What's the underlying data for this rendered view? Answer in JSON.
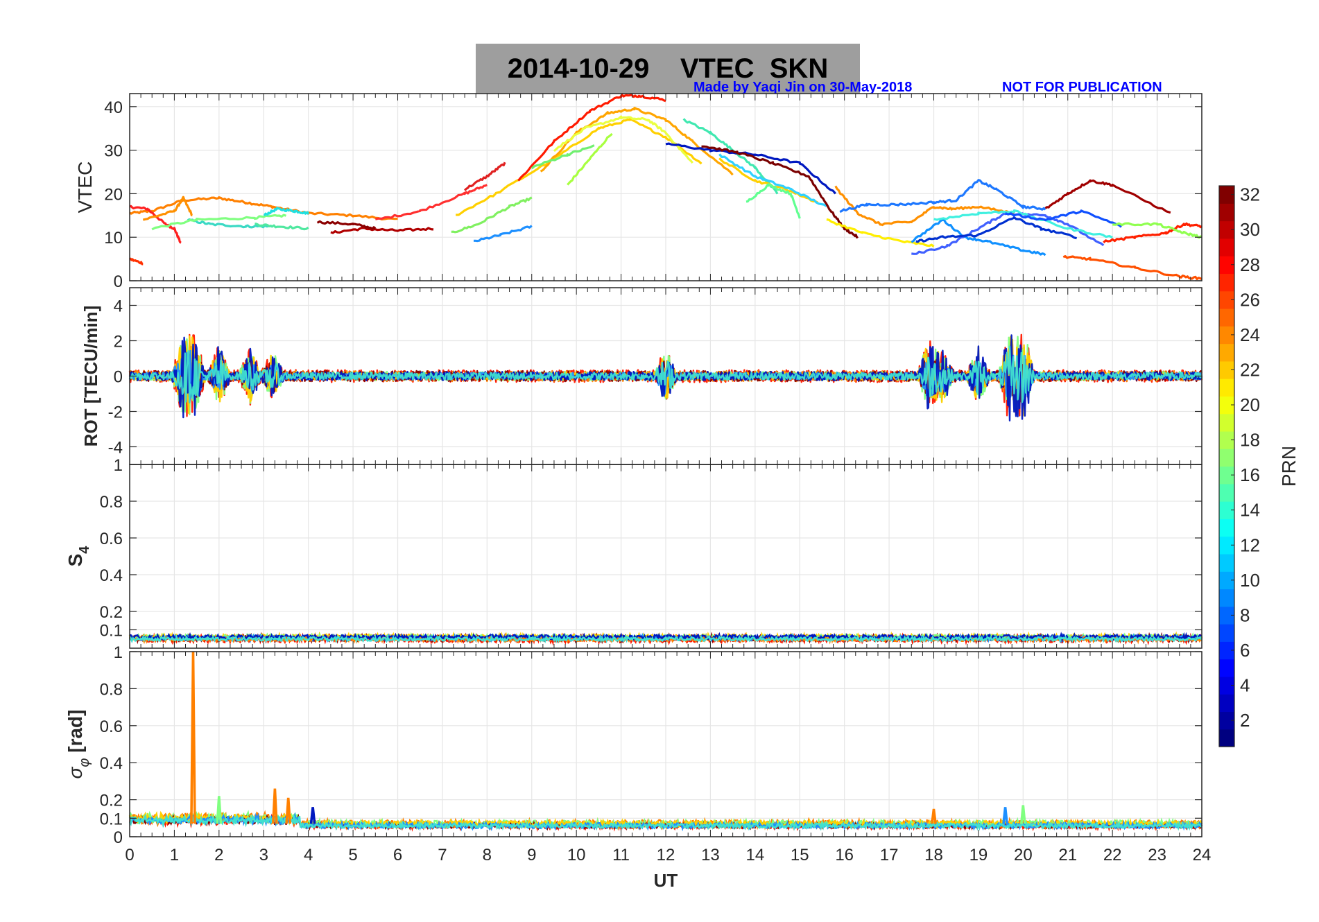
{
  "header": {
    "title": "2014-10-29    VTEC  SKN",
    "credit": "Made by Yaqi Jin on 30-May-2018",
    "notice": "NOT FOR PUBLICATION"
  },
  "colors": {
    "title_box": "#9e9e9e",
    "credit_text": "#0000ff",
    "grid": "#e6e6e6",
    "axis": "#262626"
  },
  "chart_data": [
    {
      "type": "line",
      "panel": "vtec",
      "ylabel": "VTEC",
      "xlim": [
        0,
        24
      ],
      "ylim": [
        0,
        43
      ],
      "yticks": [
        "0",
        "10",
        "20",
        "30",
        "40"
      ],
      "series": [
        {
          "color": "#ff8000",
          "x": [
            0,
            0.5,
            1.2,
            2,
            2.6,
            3.2,
            4,
            5,
            6
          ],
          "y": [
            15.5,
            16,
            18.5,
            19,
            18,
            17,
            15.5,
            15,
            14
          ]
        },
        {
          "color": "#ff2020",
          "x": [
            0,
            0.4,
            0.8,
            1.0,
            1.15
          ],
          "y": [
            17,
            16.5,
            13,
            12,
            8.5
          ]
        },
        {
          "color": "#ff3000",
          "x": [
            0,
            0.3
          ],
          "y": [
            5,
            4
          ]
        },
        {
          "color": "#ff9000",
          "x": [
            0.3,
            1.0,
            1.2,
            1.4
          ],
          "y": [
            14,
            16,
            19,
            15
          ]
        },
        {
          "color": "#3ad9c4",
          "x": [
            1.3,
            1.8,
            2.6,
            3.2
          ],
          "y": [
            14,
            13,
            12.5,
            12.5
          ]
        },
        {
          "color": "#80ff80",
          "x": [
            0.5,
            1.5,
            2.8,
            3.5
          ],
          "y": [
            12,
            14,
            14.5,
            15
          ]
        },
        {
          "color": "#20e0e0",
          "x": [
            3.0,
            3.3,
            3.7,
            4.0
          ],
          "y": [
            15,
            16.5,
            16,
            15.5
          ]
        },
        {
          "color": "#50e8a0",
          "x": [
            2.8,
            3.3,
            4.0
          ],
          "y": [
            13,
            12.5,
            12
          ]
        },
        {
          "color": "#b00000",
          "x": [
            4.5,
            5.2,
            6.0,
            6.8
          ],
          "y": [
            11,
            12,
            11.5,
            12
          ]
        },
        {
          "color": "#8b0000",
          "x": [
            4.2,
            5.0,
            5.5
          ],
          "y": [
            13.5,
            13,
            12
          ]
        },
        {
          "color": "#ff3030",
          "x": [
            5.5,
            6.5,
            7.5,
            8.0
          ],
          "y": [
            14,
            16,
            20,
            22
          ]
        },
        {
          "color": "#e02020",
          "x": [
            7.5,
            8.0,
            8.4
          ],
          "y": [
            21,
            24,
            27
          ]
        },
        {
          "color": "#80f060",
          "x": [
            7.2,
            7.8,
            8.5,
            9.0
          ],
          "y": [
            11,
            13,
            17,
            19
          ]
        },
        {
          "color": "#1e90ff",
          "x": [
            7.7,
            8.3,
            9.0
          ],
          "y": [
            9,
            10.5,
            12.5
          ]
        },
        {
          "color": "#ffd000",
          "x": [
            7.3,
            8.2,
            9.5,
            10.5,
            11.2,
            12,
            12.8
          ],
          "y": [
            15,
            20,
            28,
            35,
            37,
            33,
            27
          ]
        },
        {
          "color": "#ff1a00",
          "x": [
            8.7,
            9.5,
            10.3,
            11.0,
            11.4,
            12.0
          ],
          "y": [
            23,
            32,
            39,
            42.5,
            42.5,
            41.5
          ]
        },
        {
          "color": "#ffa500",
          "x": [
            9.2,
            10.0,
            10.7,
            11.3,
            12.0,
            12.6,
            13.5
          ],
          "y": [
            25,
            34,
            38.5,
            39.5,
            37,
            32,
            24.5
          ]
        },
        {
          "color": "#eaff40",
          "x": [
            9.5,
            10.2,
            11.0,
            11.6,
            12.0,
            12.6
          ],
          "y": [
            30,
            35,
            37.5,
            37,
            34,
            27
          ]
        },
        {
          "color": "#70f070",
          "x": [
            9.0,
            9.8,
            10.4
          ],
          "y": [
            26,
            29,
            31
          ]
        },
        {
          "color": "#a8ff40",
          "x": [
            9.8,
            10.3,
            10.8
          ],
          "y": [
            22,
            28,
            34
          ]
        },
        {
          "color": "#40e8b0",
          "x": [
            12.4,
            13.0,
            13.5,
            14.0,
            14.5
          ],
          "y": [
            37,
            34,
            30,
            26,
            20
          ]
        },
        {
          "color": "#0018c0",
          "x": [
            12.0,
            13.0,
            14.0,
            15.0,
            15.8
          ],
          "y": [
            31.5,
            30,
            29,
            27,
            20
          ]
        },
        {
          "color": "#ffd000",
          "x": [
            13.2,
            14.0,
            14.7,
            15.4
          ],
          "y": [
            28,
            23,
            21,
            18
          ]
        },
        {
          "color": "#30d0ff",
          "x": [
            13.2,
            14.0,
            14.8,
            15.6
          ],
          "y": [
            29,
            24,
            21,
            17
          ]
        },
        {
          "color": "#60ff90",
          "x": [
            13.8,
            14.3,
            14.8,
            15.0
          ],
          "y": [
            18,
            22,
            20,
            14.5
          ]
        },
        {
          "color": "#7a0000",
          "x": [
            12.8,
            13.6,
            14.4,
            15.2,
            15.7,
            16.0,
            16.3
          ],
          "y": [
            31,
            29.5,
            27,
            24,
            16,
            12,
            10
          ]
        },
        {
          "color": "#ffee00",
          "x": [
            15.6,
            16.4,
            17.3,
            18.0
          ],
          "y": [
            14,
            11,
            9,
            8
          ]
        },
        {
          "color": "#ff9000",
          "x": [
            15.8,
            16.3,
            16.8,
            17.5,
            18.0,
            18.4,
            19.0,
            19.8
          ],
          "y": [
            21.5,
            15.5,
            13,
            13.5,
            17,
            16.5,
            17,
            15.5
          ]
        },
        {
          "color": "#1e78ff",
          "x": [
            15.9,
            16.5,
            17.2,
            18.0,
            18.5,
            19.0,
            19.4,
            20.0,
            20.5
          ],
          "y": [
            16,
            17.5,
            17.5,
            18,
            18.5,
            23,
            21,
            17,
            16.5
          ]
        },
        {
          "color": "#1090ff",
          "x": [
            17.5,
            18.2,
            18.7,
            19.2,
            20.0,
            20.5
          ],
          "y": [
            9,
            14,
            10,
            9,
            7,
            6
          ]
        },
        {
          "color": "#4060ff",
          "x": [
            17.5,
            18.3,
            19.0,
            19.6,
            20.5,
            21.0,
            21.8
          ],
          "y": [
            6,
            8,
            12,
            15.5,
            15,
            13,
            8
          ]
        },
        {
          "color": "#0030d0",
          "x": [
            17.6,
            18.2,
            19.0,
            19.8,
            20.4,
            21.2
          ],
          "y": [
            9,
            10,
            10.5,
            14.5,
            12,
            10
          ]
        },
        {
          "color": "#40f0e0",
          "x": [
            18.0,
            19.0,
            19.8,
            21.0,
            22.0
          ],
          "y": [
            14,
            15.5,
            16,
            12,
            10
          ]
        },
        {
          "color": "#1050ff",
          "x": [
            19.6,
            20.5,
            21.3,
            22.2
          ],
          "y": [
            15.5,
            14,
            16,
            12.5
          ]
        },
        {
          "color": "#a00000",
          "x": [
            20.5,
            21.0,
            21.5,
            22.0,
            23.3
          ],
          "y": [
            16.5,
            20,
            23,
            22,
            15.5
          ]
        },
        {
          "color": "#ff2000",
          "x": [
            21.8,
            22.5,
            23.2,
            23.6,
            24.0
          ],
          "y": [
            9,
            10,
            11,
            13,
            12.5
          ]
        },
        {
          "color": "#ff5000",
          "x": [
            20.9,
            21.5,
            22.5,
            23.5,
            24.0
          ],
          "y": [
            5.5,
            5,
            3,
            1,
            0.5
          ]
        },
        {
          "color": "#90ff50",
          "x": [
            22.0,
            23.0,
            23.6,
            24.0
          ],
          "y": [
            13,
            13,
            11,
            10
          ]
        }
      ]
    },
    {
      "type": "line",
      "panel": "rot",
      "ylabel": "ROT [TECU/min]",
      "xlim": [
        0,
        24
      ],
      "ylim": [
        -5,
        5
      ],
      "yticks": [
        "-4",
        "-2",
        "0",
        "2",
        "4"
      ],
      "bursts": [
        {
          "x": 1.2,
          "amp": 2.1
        },
        {
          "x": 1.45,
          "amp": 2.2
        },
        {
          "x": 2.0,
          "amp": 1.6
        },
        {
          "x": 2.7,
          "amp": 1.3
        },
        {
          "x": 3.2,
          "amp": 1.2
        },
        {
          "x": 12.0,
          "amp": 1.6
        },
        {
          "x": 17.9,
          "amp": 2.0
        },
        {
          "x": 18.2,
          "amp": 1.4
        },
        {
          "x": 19.0,
          "amp": 1.5
        },
        {
          "x": 19.7,
          "amp": 2.5
        },
        {
          "x": 20.0,
          "amp": 2.6
        }
      ],
      "series": [
        {
          "color": "#ff1a00",
          "amp": 0.35
        },
        {
          "color": "#ff8000",
          "amp": 0.3
        },
        {
          "color": "#80ff80",
          "amp": 0.25
        },
        {
          "color": "#8b0000",
          "amp": 0.3
        },
        {
          "color": "#ffd000",
          "amp": 0.2
        },
        {
          "color": "#1e90ff",
          "amp": 0.2
        },
        {
          "color": "#0018c0",
          "amp": 0.25
        },
        {
          "color": "#40e0d0",
          "amp": 0.2
        }
      ]
    },
    {
      "type": "line",
      "panel": "s4",
      "ylabel": "S",
      "ylabel_sub": "4",
      "xlim": [
        0,
        24
      ],
      "ylim": [
        0,
        1
      ],
      "yticks": [
        "0.1",
        "0.2",
        "0.4",
        "0.6",
        "0.8",
        "1"
      ],
      "series": [
        {
          "color": "#ff1a00",
          "base": 0.05,
          "amp": 0.018
        },
        {
          "color": "#8b0000",
          "base": 0.055,
          "amp": 0.015
        },
        {
          "color": "#ffd000",
          "base": 0.06,
          "amp": 0.015
        },
        {
          "color": "#80ff80",
          "base": 0.06,
          "amp": 0.012
        },
        {
          "color": "#1e90ff",
          "base": 0.055,
          "amp": 0.012
        },
        {
          "color": "#ff8000",
          "base": 0.05,
          "amp": 0.012
        },
        {
          "color": "#0018c0",
          "base": 0.06,
          "amp": 0.012
        },
        {
          "color": "#40e0d0",
          "base": 0.05,
          "amp": 0.01
        }
      ]
    },
    {
      "type": "line",
      "panel": "sigma",
      "ylabel": "σ",
      "ylabel_sub": "φ",
      "ylabel_unit": "[rad]",
      "xlim": [
        0,
        24
      ],
      "ylim": [
        0,
        1
      ],
      "yticks": [
        "0",
        "0.1",
        "0.2",
        "0.4",
        "0.6",
        "0.8",
        "1"
      ],
      "xlabel": "UT",
      "xticks": [
        "0",
        "1",
        "2",
        "3",
        "4",
        "5",
        "6",
        "7",
        "8",
        "9",
        "10",
        "11",
        "12",
        "13",
        "14",
        "15",
        "16",
        "17",
        "18",
        "19",
        "20",
        "21",
        "22",
        "23",
        "24"
      ],
      "spikes": [
        {
          "x": 1.42,
          "y": 1.0,
          "color": "#ff8000"
        },
        {
          "x": 3.25,
          "y": 0.26,
          "color": "#ff8000"
        },
        {
          "x": 3.55,
          "y": 0.21,
          "color": "#ff8000"
        },
        {
          "x": 2.0,
          "y": 0.22,
          "color": "#80ff80"
        },
        {
          "x": 4.1,
          "y": 0.16,
          "color": "#0018c0"
        },
        {
          "x": 18.0,
          "y": 0.15,
          "color": "#ff8000"
        },
        {
          "x": 19.6,
          "y": 0.16,
          "color": "#1e90ff"
        },
        {
          "x": 20.0,
          "y": 0.17,
          "color": "#80ff80"
        }
      ],
      "series": [
        {
          "color": "#ff1a00",
          "base": 0.06,
          "amp": 0.015
        },
        {
          "color": "#ff8000",
          "base": 0.07,
          "amp": 0.02
        },
        {
          "color": "#80ff80",
          "base": 0.07,
          "amp": 0.018
        },
        {
          "color": "#8b0000",
          "base": 0.06,
          "amp": 0.012
        },
        {
          "color": "#ffd000",
          "base": 0.07,
          "amp": 0.015
        },
        {
          "color": "#1e90ff",
          "base": 0.06,
          "amp": 0.014
        },
        {
          "color": "#40e0d0",
          "base": 0.06,
          "amp": 0.012
        }
      ]
    },
    {
      "type": "heatmap",
      "panel": "colorbar",
      "label": "PRN",
      "range": [
        1,
        32
      ],
      "ticks": [
        "2",
        "4",
        "6",
        "8",
        "10",
        "12",
        "14",
        "16",
        "18",
        "20",
        "22",
        "24",
        "26",
        "28",
        "30",
        "32"
      ],
      "colormap": "jet"
    }
  ]
}
